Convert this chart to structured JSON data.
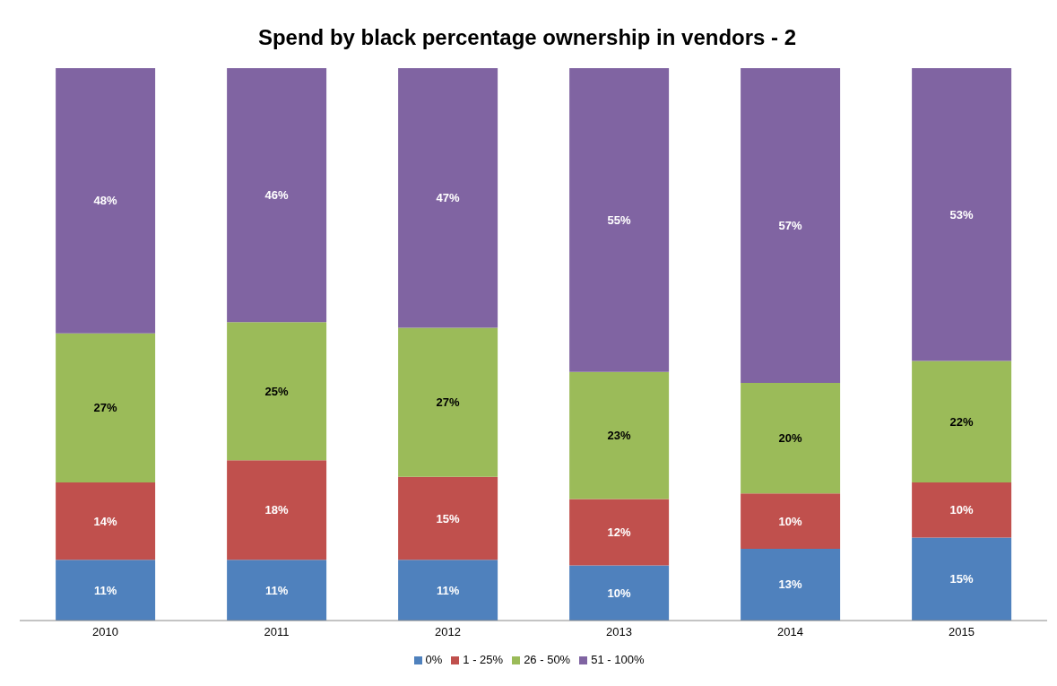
{
  "chart_data": {
    "type": "bar",
    "title": "Spend by black percentage ownership in vendors - 2",
    "categories": [
      "2010",
      "2011",
      "2012",
      "2013",
      "2014",
      "2015"
    ],
    "stacked": true,
    "legend": "bottom",
    "series": [
      {
        "name": "0%",
        "color": "#4f81bd",
        "values": [
          11,
          11,
          11,
          10,
          13,
          15
        ],
        "value_labels": [
          "11%",
          "11%",
          "11%",
          "10%",
          "13%",
          "15%"
        ]
      },
      {
        "name": "1 - 25%",
        "color": "#c0504d",
        "values": [
          14,
          18,
          15,
          12,
          10,
          10
        ],
        "value_labels": [
          "14%",
          "18%",
          "15%",
          "12%",
          "10%",
          "10%"
        ]
      },
      {
        "name": "26 - 50%",
        "color": "#9bbb59",
        "values": [
          27,
          25,
          27,
          23,
          20,
          22
        ],
        "value_labels": [
          "27%",
          "25%",
          "27%",
          "23%",
          "20%",
          "22%"
        ]
      },
      {
        "name": "51 - 100%",
        "color": "#8064a2",
        "values": [
          48,
          46,
          47,
          55,
          57,
          53
        ],
        "value_labels": [
          "48%",
          "46%",
          "47%",
          "55%",
          "57%",
          "53%"
        ]
      }
    ]
  }
}
